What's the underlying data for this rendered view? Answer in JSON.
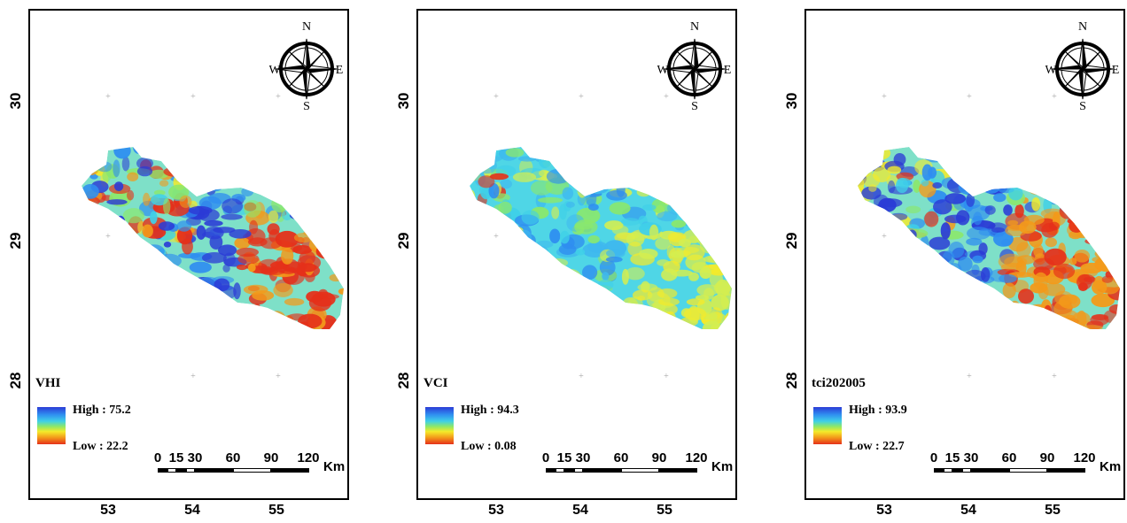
{
  "panels": [
    {
      "title": "VHI",
      "high_label": "High : 75.2",
      "low_label": "Low : 22.2",
      "high_value": 75.2,
      "low_value": 22.2,
      "theme": "vhi"
    },
    {
      "title": "VCI",
      "high_label": "High : 94.3",
      "low_label": "Low : 0.08",
      "high_value": 94.3,
      "low_value": 0.08,
      "theme": "vci"
    },
    {
      "title": "tci202005",
      "high_label": "High : 93.9",
      "low_label": "Low : 22.7",
      "high_value": 93.9,
      "low_value": 22.7,
      "theme": "tci"
    }
  ],
  "axis": {
    "y_ticks": [
      "30",
      "29",
      "28"
    ],
    "x_ticks": [
      "53",
      "54",
      "55"
    ]
  },
  "scale_bar": {
    "labels": [
      "0",
      "15",
      "30",
      "60",
      "90",
      "120"
    ],
    "unit": "Km"
  },
  "compass": {
    "north": "N",
    "south": "S",
    "east": "E",
    "west": "W"
  },
  "colors": {
    "high": "#2b3bd6",
    "mid": "#f4ea2a",
    "low": "#e5301a"
  }
}
